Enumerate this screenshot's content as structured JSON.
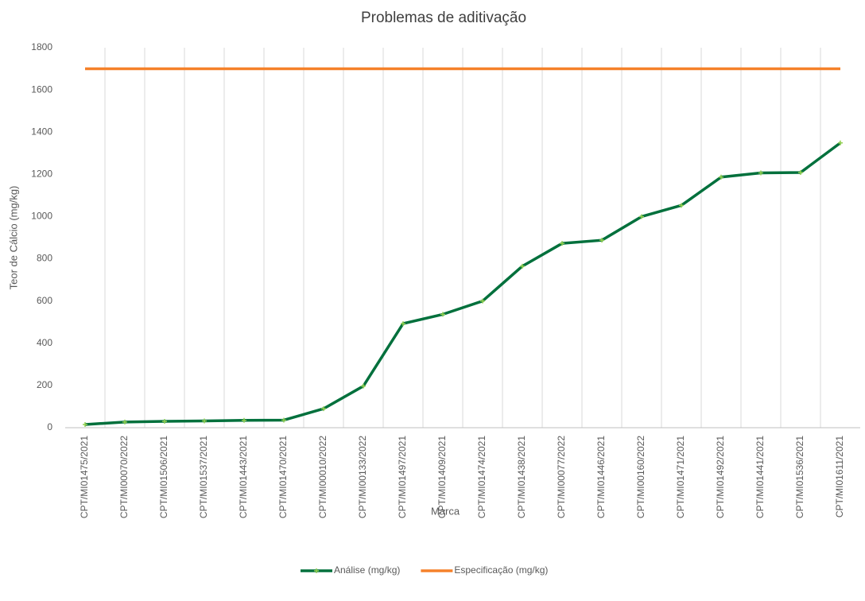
{
  "chart_data": {
    "type": "line",
    "title": "Problemas de aditivação",
    "xlabel": "Marca",
    "ylabel": "Teor de Cálcio (mg/kg)",
    "categories": [
      "CPT/MI01475/2021",
      "CPT/MI00070/2022",
      "CPT/MI01506/2021",
      "CPT/MI01537/2021",
      "CPT/MI01443/2021",
      "CPT/MI01470/2021",
      "CPT/MI00010/2022",
      "CPT/MI00133/2022",
      "CPT/MI01497/2021",
      "CPT/MI01409/2021",
      "CPT/MI01474/2021",
      "CPT/MI01438/2021",
      "CPT/MI00077/2022",
      "CPT/MI01446/2021",
      "CPT/MI00160/2022",
      "CPT/MI01471/2021",
      "CPT/MI01492/2021",
      "CPT/MI01441/2021",
      "CPT/MI01536/2021",
      "CPT/MI01611/2021"
    ],
    "series": [
      {
        "name": "Análise (mg/kg)",
        "color": "#00703c",
        "marker_color": "#92d050",
        "values": [
          15,
          27,
          30,
          32,
          35,
          36,
          90,
          197,
          493,
          537,
          600,
          765,
          873,
          888,
          1000,
          1053,
          1187,
          1207,
          1209,
          1349
        ]
      },
      {
        "name": "Especificação (mg/kg)",
        "color": "#f5812a",
        "values": [
          1700,
          1700,
          1700,
          1700,
          1700,
          1700,
          1700,
          1700,
          1700,
          1700,
          1700,
          1700,
          1700,
          1700,
          1700,
          1700,
          1700,
          1700,
          1700,
          1700
        ]
      }
    ],
    "ylim": [
      0,
      1800
    ],
    "yticks": [
      0,
      200,
      400,
      600,
      800,
      1000,
      1200,
      1400,
      1600,
      1800
    ],
    "legend": "bottom"
  }
}
